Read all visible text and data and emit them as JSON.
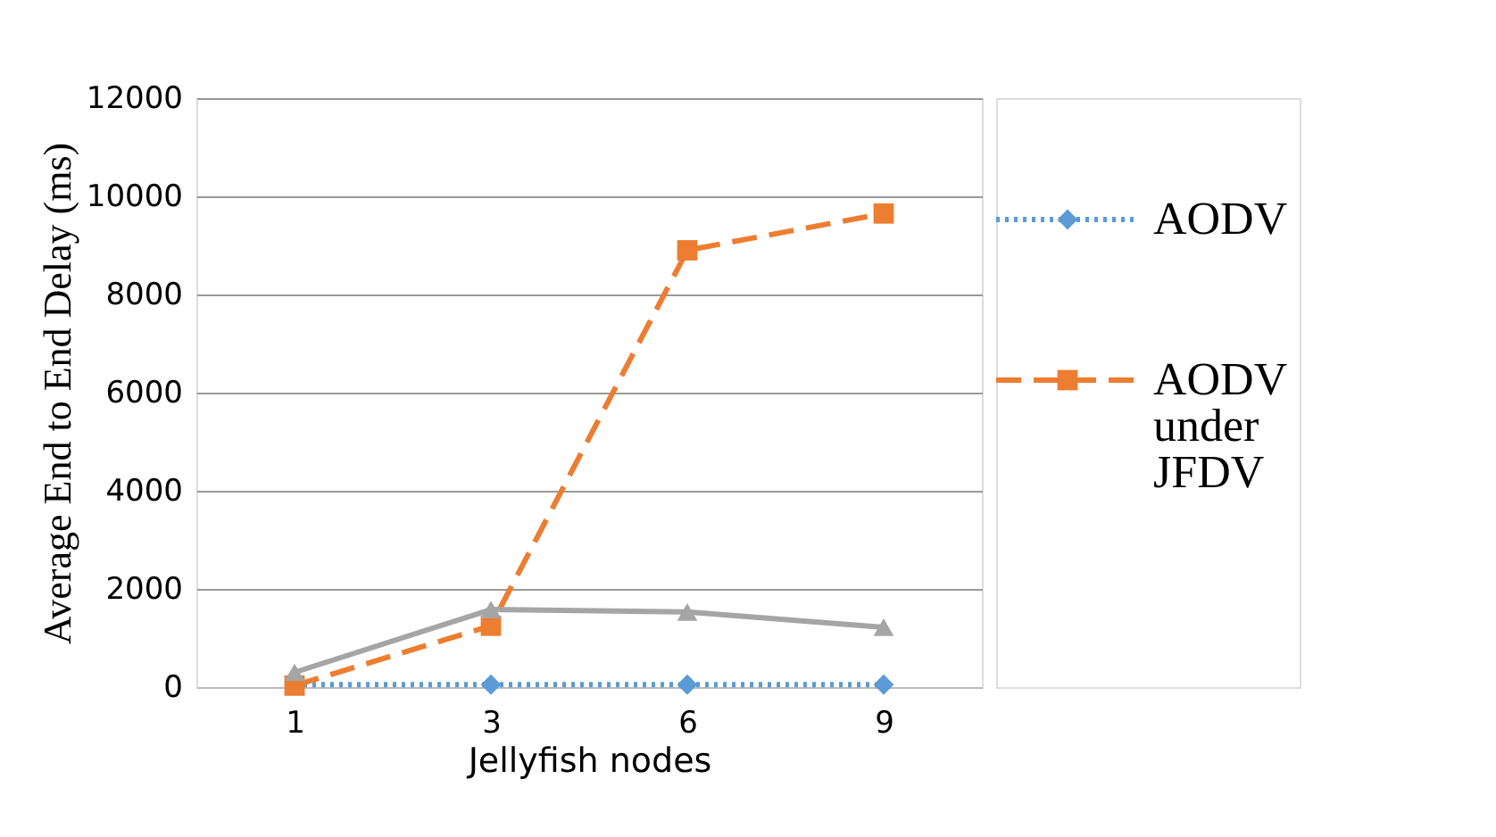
{
  "chart_data": {
    "type": "line",
    "xlabel": "Jellyfish  nodes",
    "ylabel": "Average End to End Delay (ms)",
    "categories": [
      "1",
      "3",
      "6",
      "9"
    ],
    "ylim": [
      0,
      12000
    ],
    "yticks": [
      0,
      2000,
      4000,
      6000,
      8000,
      10000,
      12000
    ],
    "grid": "y",
    "legend": "right",
    "series": [
      {
        "name": "AODV",
        "color": "#5b9bd5",
        "values": [
          50,
          50,
          50,
          50
        ],
        "marker": "diamond",
        "line_style": "dotted"
      },
      {
        "name": "AODV under JFDV",
        "color": "#ed7d31",
        "values": [
          30,
          1250,
          8900,
          9650
        ],
        "marker": "square",
        "line_style": "dashed"
      },
      {
        "color": "#a5a5a5",
        "values": [
          300,
          1580,
          1530,
          1220
        ],
        "marker": "triangle",
        "line_style": "solid"
      }
    ]
  }
}
